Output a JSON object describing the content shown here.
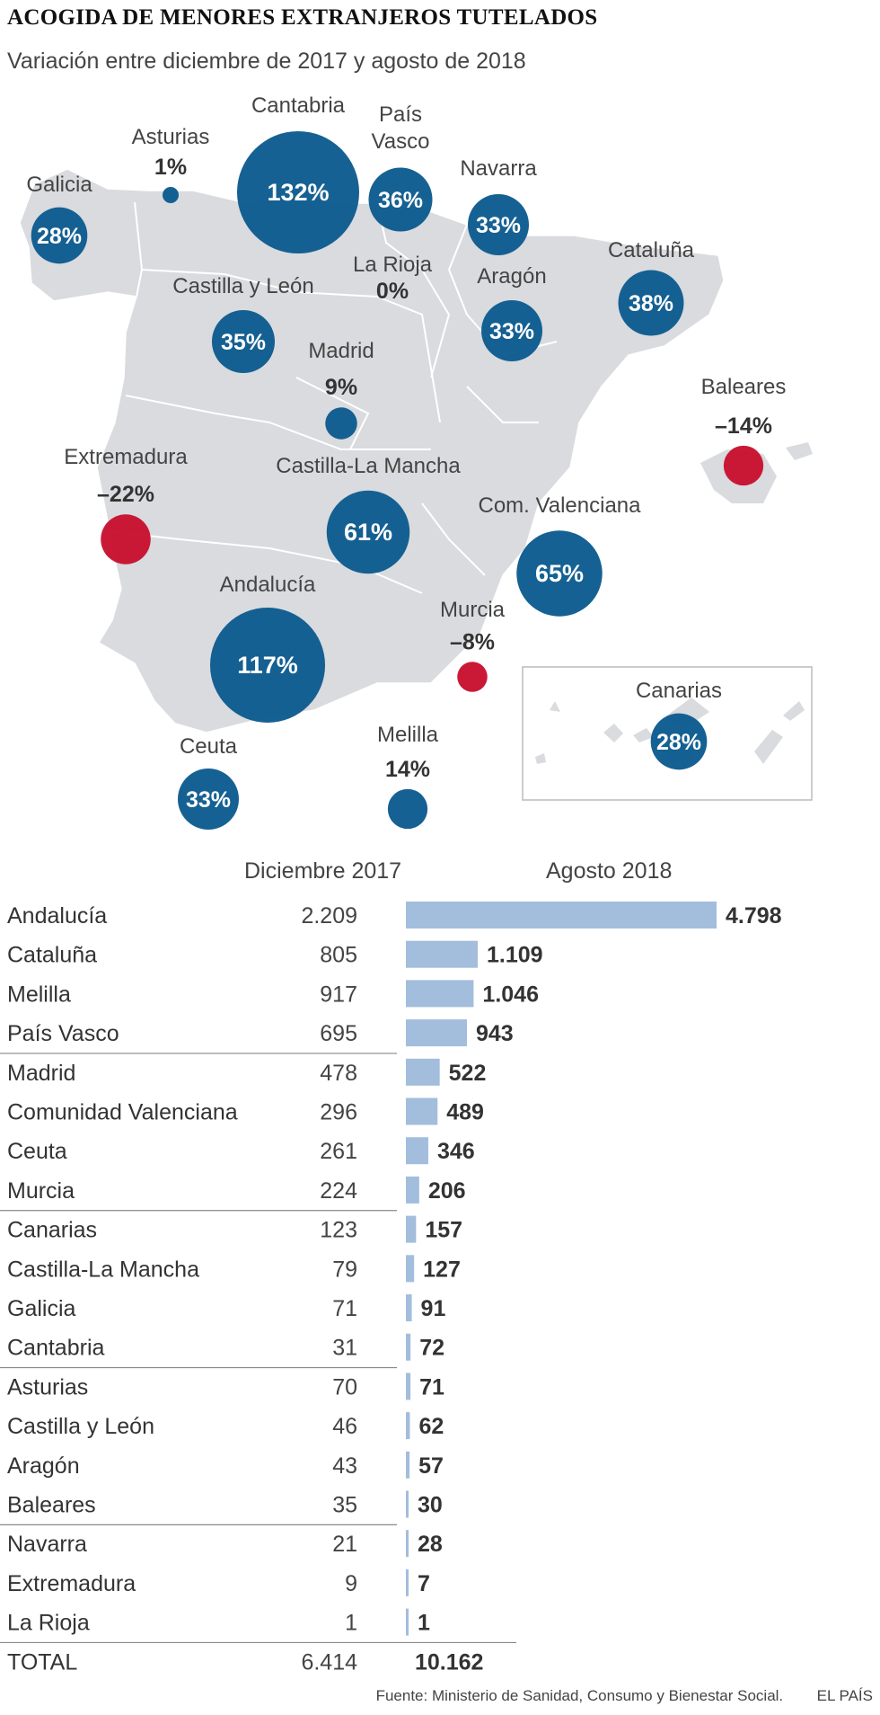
{
  "title": "ACOGIDA DE MENORES EXTRANJEROS TUTELADOS",
  "subtitle": "Variación entre diciembre de 2017 y agosto de 2018",
  "colors": {
    "increase": "#0d5b8f",
    "decrease": "#c8102e",
    "bar": "#a3bddc",
    "land": "#d9dbde"
  },
  "chart_data": [
    {
      "type": "bubble-map",
      "regions": [
        {
          "name": "Galicia",
          "label": "28%",
          "value": 28
        },
        {
          "name": "Asturias",
          "label": "1%",
          "value": 1
        },
        {
          "name": "Cantabria",
          "label": "132%",
          "value": 132
        },
        {
          "name": "País Vasco",
          "label": "36%",
          "value": 36
        },
        {
          "name": "Navarra",
          "label": "33%",
          "value": 33
        },
        {
          "name": "La Rioja",
          "label": "0%",
          "value": 0
        },
        {
          "name": "Castilla y León",
          "label": "35%",
          "value": 35
        },
        {
          "name": "Aragón",
          "label": "33%",
          "value": 33
        },
        {
          "name": "Cataluña",
          "label": "38%",
          "value": 38
        },
        {
          "name": "Madrid",
          "label": "9%",
          "value": 9
        },
        {
          "name": "Baleares",
          "label": "–14%",
          "value": -14
        },
        {
          "name": "Extremadura",
          "label": "–22%",
          "value": -22
        },
        {
          "name": "Castilla-La Mancha",
          "label": "61%",
          "value": 61
        },
        {
          "name": "Com. Valenciana",
          "label": "65%",
          "value": 65
        },
        {
          "name": "Andalucía",
          "label": "117%",
          "value": 117
        },
        {
          "name": "Murcia",
          "label": "–8%",
          "value": -8
        },
        {
          "name": "Ceuta",
          "label": "33%",
          "value": 33
        },
        {
          "name": "Melilla",
          "label": "14%",
          "value": 14
        },
        {
          "name": "Canarias",
          "label": "28%",
          "value": 28
        }
      ]
    },
    {
      "type": "bar",
      "columns": [
        "Diciembre 2017",
        "Agosto 2018"
      ],
      "rows": [
        {
          "name": "Andalucía",
          "dec2017": "2.209",
          "aug2018": "4.798",
          "value": 4798
        },
        {
          "name": "Cataluña",
          "dec2017": "805",
          "aug2018": "1.109",
          "value": 1109
        },
        {
          "name": "Melilla",
          "dec2017": "917",
          "aug2018": "1.046",
          "value": 1046
        },
        {
          "name": "País Vasco",
          "dec2017": "695",
          "aug2018": "943",
          "value": 943
        },
        {
          "name": "Madrid",
          "dec2017": "478",
          "aug2018": "522",
          "value": 522
        },
        {
          "name": "Comunidad Valenciana",
          "dec2017": "296",
          "aug2018": "489",
          "value": 489
        },
        {
          "name": "Ceuta",
          "dec2017": "261",
          "aug2018": "346",
          "value": 346
        },
        {
          "name": "Murcia",
          "dec2017": "224",
          "aug2018": "206",
          "value": 206
        },
        {
          "name": "Canarias",
          "dec2017": "123",
          "aug2018": "157",
          "value": 157
        },
        {
          "name": "Castilla-La Mancha",
          "dec2017": "79",
          "aug2018": "127",
          "value": 127
        },
        {
          "name": "Galicia",
          "dec2017": "71",
          "aug2018": "91",
          "value": 91
        },
        {
          "name": "Cantabria",
          "dec2017": "31",
          "aug2018": "72",
          "value": 72
        },
        {
          "name": "Asturias",
          "dec2017": "70",
          "aug2018": "71",
          "value": 71
        },
        {
          "name": "Castilla y León",
          "dec2017": "46",
          "aug2018": "62",
          "value": 62
        },
        {
          "name": "Aragón",
          "dec2017": "43",
          "aug2018": "57",
          "value": 57
        },
        {
          "name": "Baleares",
          "dec2017": "35",
          "aug2018": "30",
          "value": 30
        },
        {
          "name": "Navarra",
          "dec2017": "21",
          "aug2018": "28",
          "value": 28
        },
        {
          "name": "Extremadura",
          "dec2017": "9",
          "aug2018": "7",
          "value": 7
        },
        {
          "name": "La Rioja",
          "dec2017": "1",
          "aug2018": "1",
          "value": 1
        }
      ],
      "total": {
        "name": "TOTAL",
        "dec2017": "6.414",
        "aug2018": "10.162"
      }
    }
  ],
  "source": "Fuente: Ministerio de Sanidad, Consumo y Bienestar Social.",
  "brand": "EL PAÍS"
}
